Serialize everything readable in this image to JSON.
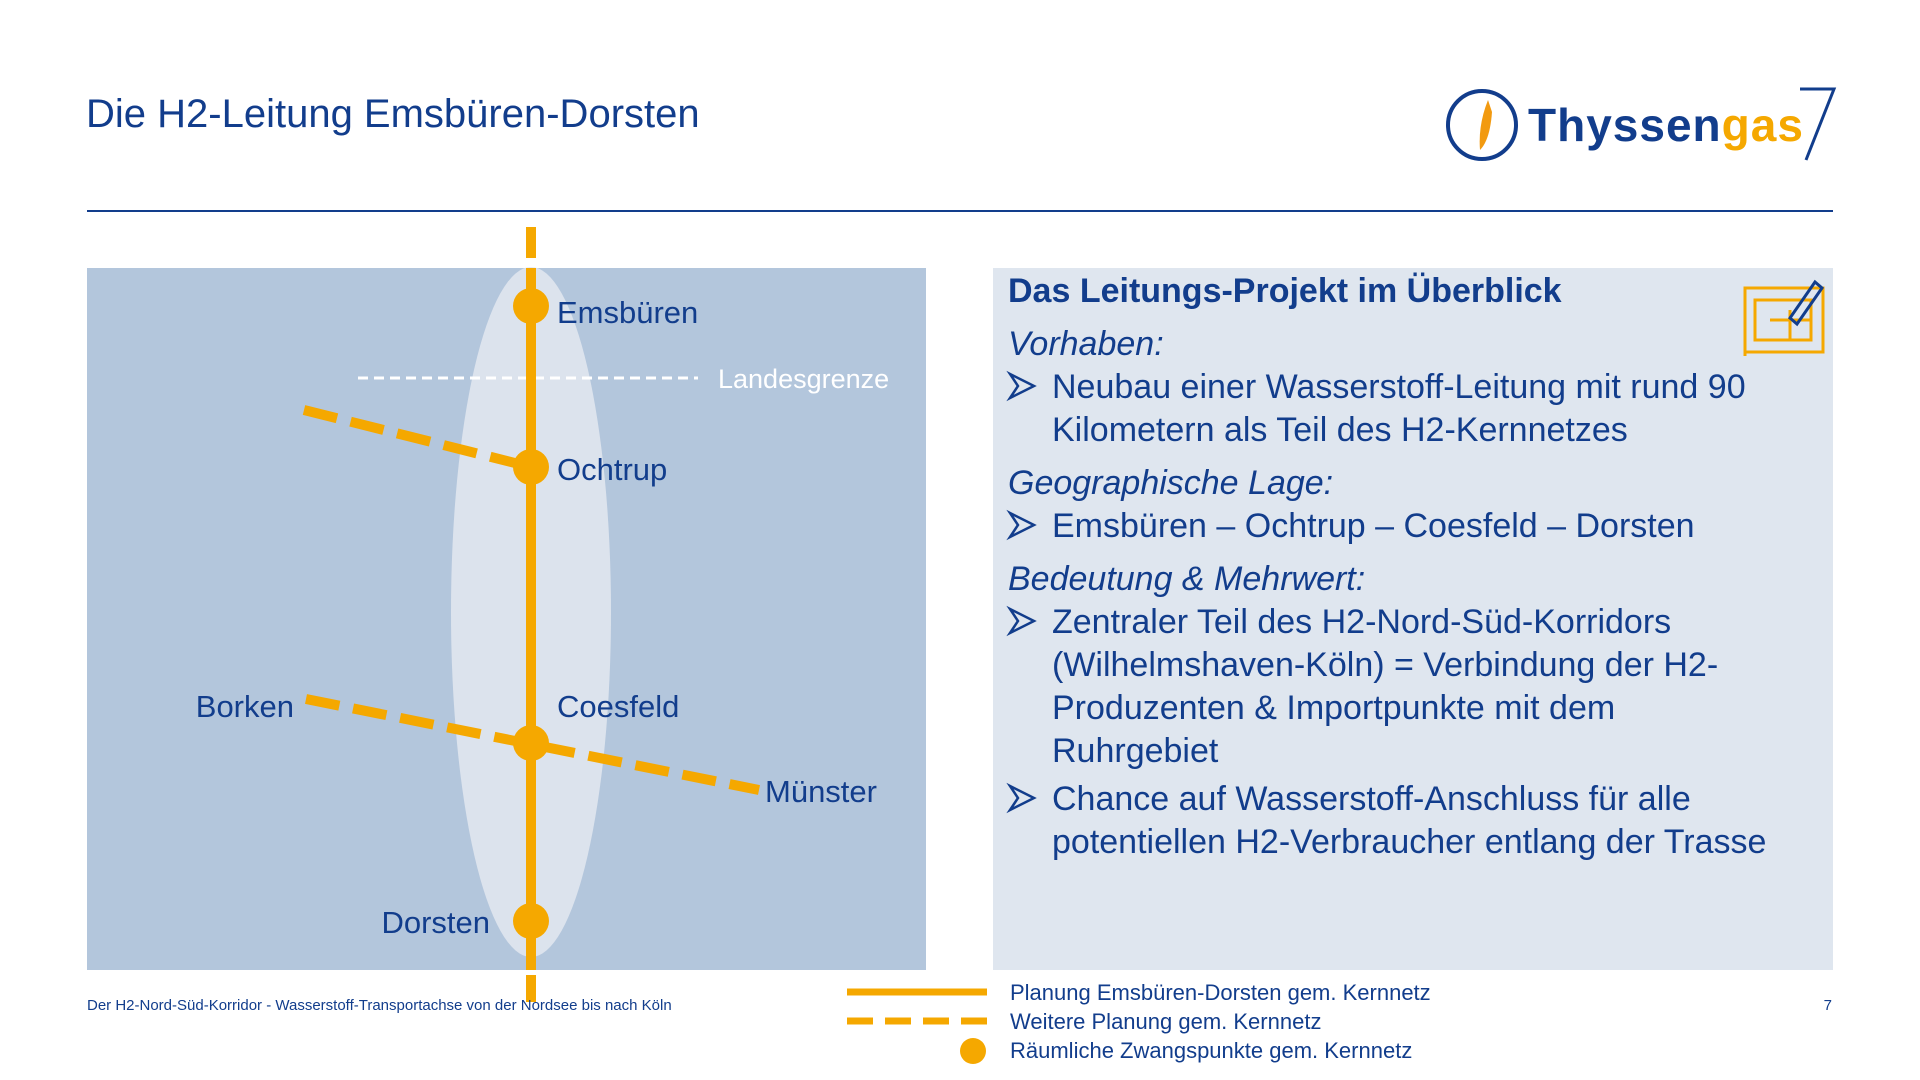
{
  "header": {
    "title": "Die H2-Leitung Emsbüren-Dorsten",
    "logo": {
      "part1": "Thyssen",
      "part2": "gas"
    }
  },
  "map": {
    "places": [
      "Emsbüren",
      "Ochtrup",
      "Borken",
      "Coesfeld",
      "Münster",
      "Dorsten"
    ],
    "border_label": "Landesgrenze"
  },
  "panel": {
    "heading": "Das Leitungs-Projekt im Überblick",
    "sections": [
      {
        "title": "Vorhaben:",
        "items": [
          [
            "Neubau einer Wasserstoff-Leitung mit rund 90",
            "Kilometern als Teil des H2-Kernnetzes"
          ]
        ]
      },
      {
        "title": "Geographische Lage:",
        "items": [
          [
            "Emsbüren – Ochtrup – Coesfeld – Dorsten"
          ]
        ]
      },
      {
        "title": "Bedeutung & Mehrwert:",
        "items": [
          [
            "Zentraler Teil des H2-Nord-Süd-Korridors",
            "(Wilhelmshaven-Köln) = Verbindung der H2-",
            "Produzenten & Importpunkte mit dem",
            "Ruhrgebiet"
          ],
          [
            "Chance auf Wasserstoff-Anschluss für alle",
            "potentiellen H2-Verbraucher entlang der Trasse"
          ]
        ]
      }
    ]
  },
  "legend": [
    "Planung Emsbüren-Dorsten gem. Kernnetz",
    "Weitere Planung gem. Kernnetz",
    "Räumliche Zwangspunkte gem. Kernnetz"
  ],
  "footer": {
    "text": "Der H2-Nord-Süd-Korridor - Wasserstoff-Transportachse von der Nordsee bis nach Köln",
    "page": "7"
  }
}
